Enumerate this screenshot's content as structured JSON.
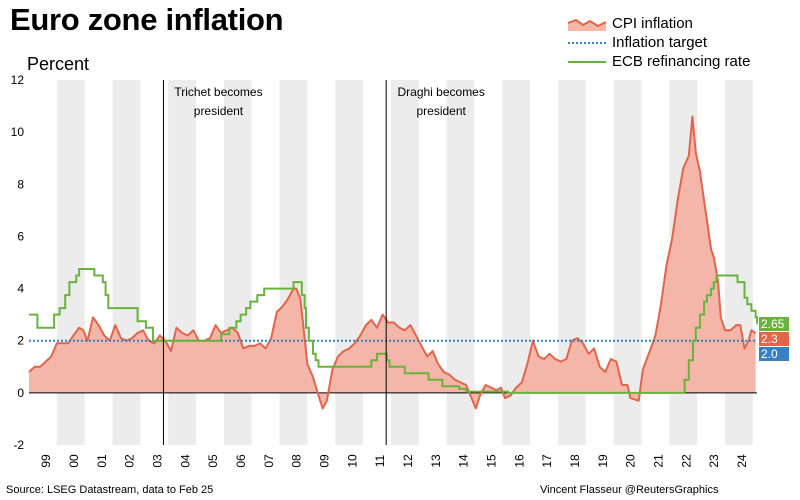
{
  "header": {
    "title": "Euro zone inflation",
    "unit": "Percent"
  },
  "legend": {
    "cpi": "CPI inflation",
    "target": "Inflation target",
    "ecb": "ECB refinancing rate"
  },
  "footer": {
    "source": "Source: LSEG Datastream, data to Feb 25",
    "credit": "Vincent Flasseur @ReutersGraphics"
  },
  "colors": {
    "cpi_line": "#e0654a",
    "cpi_fill": "#f4b6a8",
    "target": "#3a7fc0",
    "ecb": "#6ab23e",
    "band": "#ececec",
    "badge_ecb": "#6ab23e",
    "badge_cpi": "#e0654a",
    "badge_target": "#3a7fc0"
  },
  "chart_data": {
    "type": "line",
    "xlim": [
      1999.0,
      2025.15
    ],
    "ylim": [
      -2,
      12
    ],
    "yticks": [
      -2,
      0,
      2,
      4,
      6,
      8,
      10,
      12
    ],
    "xtick_labels": [
      "99",
      "00",
      "01",
      "02",
      "03",
      "04",
      "05",
      "06",
      "07",
      "08",
      "09",
      "10",
      "11",
      "12",
      "13",
      "14",
      "15",
      "16",
      "17",
      "18",
      "19",
      "20",
      "21",
      "22",
      "23",
      "24"
    ],
    "alternating_year_bands": true,
    "annotations": [
      {
        "x": 2003.83,
        "lines": [
          "Trichet becomes",
          "president"
        ]
      },
      {
        "x": 2011.83,
        "lines": [
          "Draghi becomes",
          "president"
        ]
      }
    ],
    "end_labels": [
      {
        "series": "ecb",
        "text": "2.65"
      },
      {
        "series": "cpi",
        "text": "2.3"
      },
      {
        "series": "target",
        "text": "2.0"
      }
    ],
    "target": 2.0,
    "series": [
      {
        "name": "CPI inflation",
        "key": "cpi",
        "kind": "area",
        "points": [
          [
            1999.0,
            0.8
          ],
          [
            1999.2,
            1.0
          ],
          [
            1999.4,
            1.0
          ],
          [
            1999.6,
            1.2
          ],
          [
            1999.8,
            1.4
          ],
          [
            2000.0,
            1.9
          ],
          [
            2000.2,
            1.9
          ],
          [
            2000.4,
            1.9
          ],
          [
            2000.6,
            2.2
          ],
          [
            2000.8,
            2.5
          ],
          [
            2000.95,
            2.4
          ],
          [
            2001.1,
            2.0
          ],
          [
            2001.3,
            2.9
          ],
          [
            2001.5,
            2.6
          ],
          [
            2001.7,
            2.2
          ],
          [
            2001.9,
            2.0
          ],
          [
            2002.1,
            2.6
          ],
          [
            2002.3,
            2.1
          ],
          [
            2002.5,
            2.0
          ],
          [
            2002.7,
            2.1
          ],
          [
            2002.9,
            2.3
          ],
          [
            2003.1,
            2.4
          ],
          [
            2003.3,
            2.0
          ],
          [
            2003.5,
            1.9
          ],
          [
            2003.7,
            2.2
          ],
          [
            2003.9,
            2.0
          ],
          [
            2004.1,
            1.6
          ],
          [
            2004.3,
            2.5
          ],
          [
            2004.5,
            2.3
          ],
          [
            2004.7,
            2.2
          ],
          [
            2004.9,
            2.4
          ],
          [
            2005.1,
            2.0
          ],
          [
            2005.3,
            2.0
          ],
          [
            2005.5,
            2.1
          ],
          [
            2005.7,
            2.6
          ],
          [
            2005.9,
            2.3
          ],
          [
            2006.1,
            2.4
          ],
          [
            2006.3,
            2.5
          ],
          [
            2006.5,
            2.3
          ],
          [
            2006.7,
            1.7
          ],
          [
            2006.9,
            1.8
          ],
          [
            2007.1,
            1.8
          ],
          [
            2007.3,
            1.9
          ],
          [
            2007.5,
            1.7
          ],
          [
            2007.7,
            2.1
          ],
          [
            2007.9,
            3.1
          ],
          [
            2008.1,
            3.3
          ],
          [
            2008.3,
            3.6
          ],
          [
            2008.5,
            4.0
          ],
          [
            2008.6,
            4.0
          ],
          [
            2008.75,
            3.6
          ],
          [
            2008.9,
            2.1
          ],
          [
            2009.0,
            1.1
          ],
          [
            2009.2,
            0.6
          ],
          [
            2009.4,
            -0.1
          ],
          [
            2009.55,
            -0.6
          ],
          [
            2009.7,
            -0.3
          ],
          [
            2009.9,
            0.9
          ],
          [
            2010.1,
            1.4
          ],
          [
            2010.3,
            1.6
          ],
          [
            2010.5,
            1.7
          ],
          [
            2010.7,
            1.9
          ],
          [
            2010.9,
            2.2
          ],
          [
            2011.1,
            2.6
          ],
          [
            2011.3,
            2.8
          ],
          [
            2011.5,
            2.5
          ],
          [
            2011.7,
            3.0
          ],
          [
            2011.9,
            2.7
          ],
          [
            2012.1,
            2.7
          ],
          [
            2012.3,
            2.5
          ],
          [
            2012.5,
            2.4
          ],
          [
            2012.7,
            2.6
          ],
          [
            2012.9,
            2.2
          ],
          [
            2013.1,
            1.8
          ],
          [
            2013.3,
            1.4
          ],
          [
            2013.5,
            1.6
          ],
          [
            2013.7,
            1.1
          ],
          [
            2013.9,
            0.8
          ],
          [
            2014.1,
            0.7
          ],
          [
            2014.3,
            0.5
          ],
          [
            2014.5,
            0.4
          ],
          [
            2014.7,
            0.3
          ],
          [
            2014.9,
            -0.2
          ],
          [
            2015.05,
            -0.6
          ],
          [
            2015.2,
            -0.1
          ],
          [
            2015.4,
            0.3
          ],
          [
            2015.6,
            0.2
          ],
          [
            2015.8,
            0.1
          ],
          [
            2015.95,
            0.2
          ],
          [
            2016.1,
            -0.2
          ],
          [
            2016.3,
            -0.1
          ],
          [
            2016.5,
            0.2
          ],
          [
            2016.7,
            0.4
          ],
          [
            2016.9,
            1.1
          ],
          [
            2017.1,
            2.0
          ],
          [
            2017.3,
            1.4
          ],
          [
            2017.5,
            1.3
          ],
          [
            2017.7,
            1.5
          ],
          [
            2017.9,
            1.3
          ],
          [
            2018.1,
            1.2
          ],
          [
            2018.3,
            1.3
          ],
          [
            2018.5,
            2.0
          ],
          [
            2018.7,
            2.1
          ],
          [
            2018.9,
            1.9
          ],
          [
            2019.1,
            1.5
          ],
          [
            2019.3,
            1.7
          ],
          [
            2019.5,
            1.0
          ],
          [
            2019.7,
            0.8
          ],
          [
            2019.9,
            1.3
          ],
          [
            2020.1,
            1.2
          ],
          [
            2020.3,
            0.3
          ],
          [
            2020.5,
            0.3
          ],
          [
            2020.6,
            -0.2
          ],
          [
            2020.9,
            -0.3
          ],
          [
            2021.05,
            0.9
          ],
          [
            2021.3,
            1.6
          ],
          [
            2021.5,
            2.2
          ],
          [
            2021.7,
            3.4
          ],
          [
            2021.9,
            4.9
          ],
          [
            2022.1,
            5.9
          ],
          [
            2022.3,
            7.4
          ],
          [
            2022.5,
            8.6
          ],
          [
            2022.7,
            9.1
          ],
          [
            2022.83,
            10.6
          ],
          [
            2022.95,
            9.2
          ],
          [
            2023.1,
            8.5
          ],
          [
            2023.3,
            7.0
          ],
          [
            2023.5,
            5.5
          ],
          [
            2023.6,
            5.2
          ],
          [
            2023.75,
            4.3
          ],
          [
            2023.85,
            2.9
          ],
          [
            2024.0,
            2.4
          ],
          [
            2024.2,
            2.4
          ],
          [
            2024.4,
            2.6
          ],
          [
            2024.55,
            2.6
          ],
          [
            2024.7,
            1.7
          ],
          [
            2024.85,
            2.0
          ],
          [
            2024.95,
            2.4
          ],
          [
            2025.1,
            2.3
          ]
        ]
      },
      {
        "name": "Inflation target",
        "key": "target",
        "kind": "line",
        "points": [
          [
            1999.0,
            2.0
          ],
          [
            2025.1,
            2.0
          ]
        ]
      },
      {
        "name": "ECB refinancing rate",
        "key": "ecb",
        "kind": "step",
        "points": [
          [
            1999.0,
            3.0
          ],
          [
            1999.3,
            2.5
          ],
          [
            1999.9,
            3.0
          ],
          [
            2000.1,
            3.25
          ],
          [
            2000.3,
            3.75
          ],
          [
            2000.45,
            4.25
          ],
          [
            2000.5,
            4.25
          ],
          [
            2000.7,
            4.5
          ],
          [
            2000.8,
            4.75
          ],
          [
            2001.35,
            4.5
          ],
          [
            2001.65,
            4.25
          ],
          [
            2001.75,
            3.75
          ],
          [
            2001.85,
            3.25
          ],
          [
            2002.9,
            2.75
          ],
          [
            2003.2,
            2.5
          ],
          [
            2003.45,
            2.0
          ],
          [
            2005.9,
            2.25
          ],
          [
            2006.2,
            2.5
          ],
          [
            2006.45,
            2.75
          ],
          [
            2006.6,
            3.0
          ],
          [
            2006.8,
            3.25
          ],
          [
            2006.95,
            3.5
          ],
          [
            2007.2,
            3.75
          ],
          [
            2007.45,
            4.0
          ],
          [
            2008.5,
            4.25
          ],
          [
            2008.8,
            3.75
          ],
          [
            2008.9,
            3.25
          ],
          [
            2008.95,
            2.5
          ],
          [
            2009.05,
            2.0
          ],
          [
            2009.2,
            1.5
          ],
          [
            2009.3,
            1.25
          ],
          [
            2009.4,
            1.0
          ],
          [
            2011.3,
            1.25
          ],
          [
            2011.5,
            1.5
          ],
          [
            2011.85,
            1.25
          ],
          [
            2011.95,
            1.0
          ],
          [
            2012.5,
            0.75
          ],
          [
            2013.35,
            0.5
          ],
          [
            2013.85,
            0.25
          ],
          [
            2014.45,
            0.15
          ],
          [
            2014.7,
            0.05
          ],
          [
            2016.2,
            0.0
          ],
          [
            2022.55,
            0.5
          ],
          [
            2022.7,
            1.25
          ],
          [
            2022.85,
            2.0
          ],
          [
            2022.95,
            2.5
          ],
          [
            2023.1,
            3.0
          ],
          [
            2023.25,
            3.5
          ],
          [
            2023.35,
            3.75
          ],
          [
            2023.5,
            4.0
          ],
          [
            2023.6,
            4.25
          ],
          [
            2023.7,
            4.5
          ],
          [
            2024.45,
            4.25
          ],
          [
            2024.7,
            3.65
          ],
          [
            2024.8,
            3.4
          ],
          [
            2024.95,
            3.15
          ],
          [
            2025.1,
            2.9
          ],
          [
            2025.15,
            2.65
          ]
        ]
      }
    ]
  }
}
